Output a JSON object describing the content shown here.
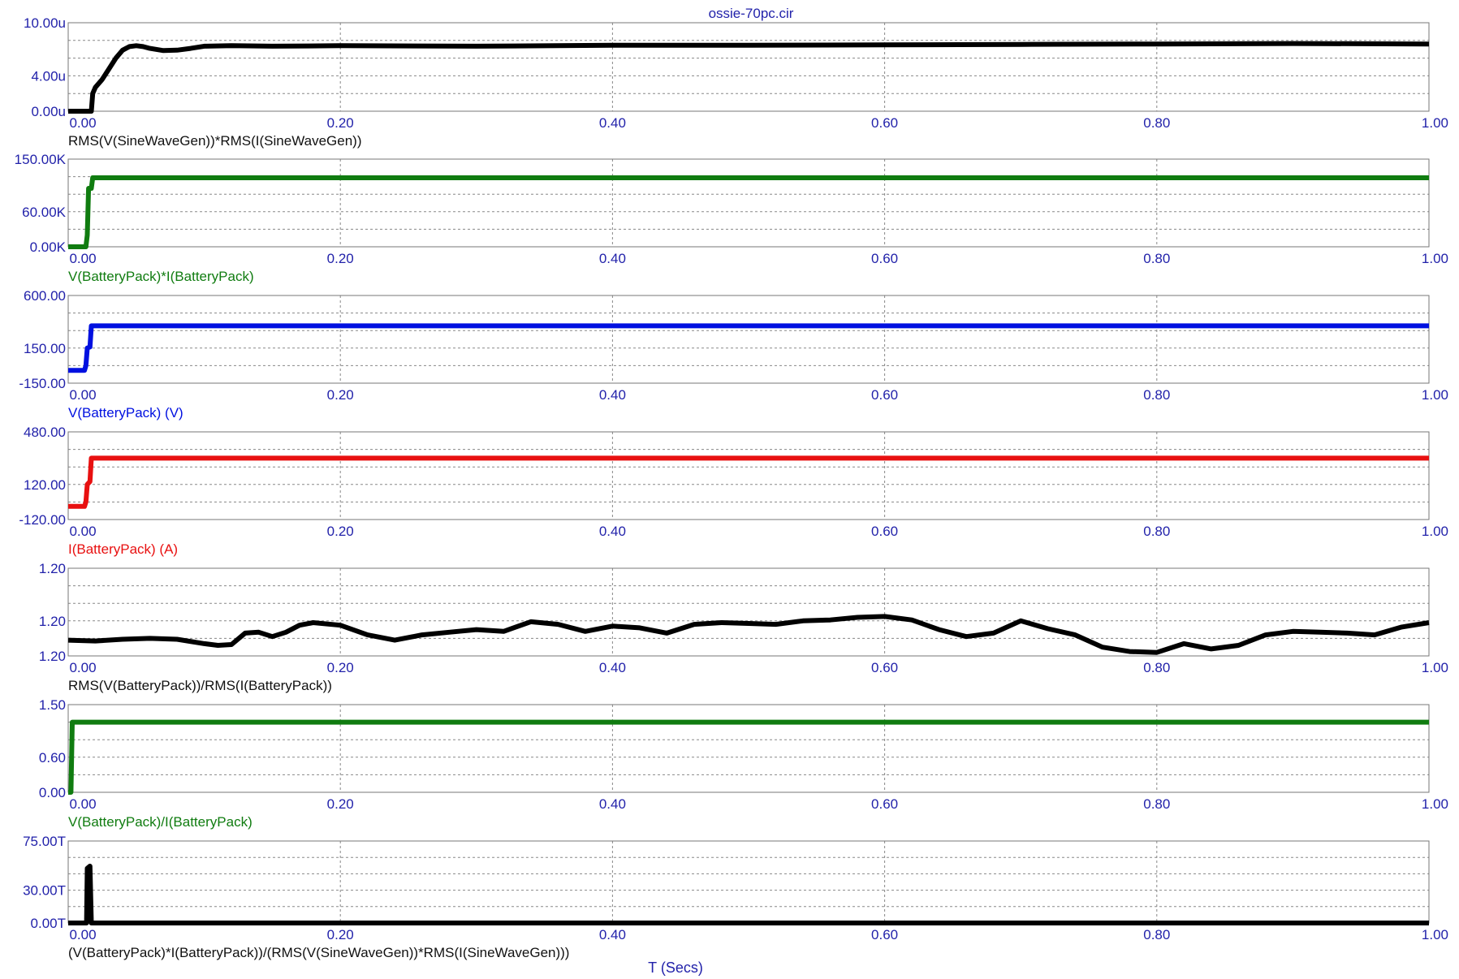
{
  "title": "ossie-70pc.cir",
  "xaxis_title": "T (Secs)",
  "chart_data": [
    {
      "type": "line",
      "series": [
        {
          "name": "RMS(V(SineWaveGen))*RMS(I(SineWaveGen))",
          "color": "#000000"
        }
      ],
      "yticks": [
        "10.00u",
        "4.00u",
        "0.00u"
      ],
      "ylim": [
        0,
        10
      ],
      "xticks": [
        "0.00",
        "0.20",
        "0.40",
        "0.60",
        "0.80",
        "1.00"
      ],
      "xlim": [
        0,
        1
      ],
      "grid": true,
      "points": [
        [
          0,
          0
        ],
        [
          0.017,
          0
        ],
        [
          0.018,
          2
        ],
        [
          0.02,
          2.7
        ],
        [
          0.025,
          3.6
        ],
        [
          0.03,
          4.8
        ],
        [
          0.035,
          6
        ],
        [
          0.04,
          6.9
        ],
        [
          0.045,
          7.3
        ],
        [
          0.05,
          7.4
        ],
        [
          0.055,
          7.3
        ],
        [
          0.06,
          7.1
        ],
        [
          0.07,
          6.85
        ],
        [
          0.08,
          6.9
        ],
        [
          0.09,
          7.1
        ],
        [
          0.1,
          7.35
        ],
        [
          0.12,
          7.4
        ],
        [
          0.15,
          7.35
        ],
        [
          0.2,
          7.4
        ],
        [
          0.3,
          7.35
        ],
        [
          0.4,
          7.45
        ],
        [
          0.5,
          7.45
        ],
        [
          0.6,
          7.5
        ],
        [
          0.7,
          7.55
        ],
        [
          0.8,
          7.6
        ],
        [
          0.9,
          7.65
        ],
        [
          1.0,
          7.6
        ]
      ]
    },
    {
      "type": "line",
      "series": [
        {
          "name": "V(BatteryPack)*I(BatteryPack)",
          "color": "#107c10"
        }
      ],
      "yticks": [
        "150.00K",
        "60.00K",
        "0.00K"
      ],
      "ylim": [
        0,
        150
      ],
      "xticks": [
        "0.00",
        "0.20",
        "0.40",
        "0.60",
        "0.80",
        "1.00"
      ],
      "xlim": [
        0,
        1
      ],
      "grid": true,
      "points": [
        [
          0,
          0
        ],
        [
          0.013,
          0
        ],
        [
          0.014,
          20
        ],
        [
          0.015,
          100
        ],
        [
          0.017,
          100
        ],
        [
          0.018,
          118
        ],
        [
          1.0,
          118
        ]
      ]
    },
    {
      "type": "line",
      "series": [
        {
          "name": "V(BatteryPack) (V)",
          "color": "#0010e0"
        }
      ],
      "yticks": [
        "600.00",
        "150.00",
        "-150.00"
      ],
      "ylim": [
        -150,
        600
      ],
      "xticks": [
        "0.00",
        "0.20",
        "0.40",
        "0.60",
        "0.80",
        "1.00"
      ],
      "xlim": [
        0,
        1
      ],
      "grid": true,
      "points": [
        [
          0,
          -40
        ],
        [
          0.012,
          -40
        ],
        [
          0.013,
          0
        ],
        [
          0.014,
          150
        ],
        [
          0.016,
          160
        ],
        [
          0.017,
          340
        ],
        [
          1.0,
          340
        ]
      ]
    },
    {
      "type": "line",
      "series": [
        {
          "name": "I(BatteryPack) (A)",
          "color": "#e81010"
        }
      ],
      "yticks": [
        "480.00",
        "120.00",
        "-120.00"
      ],
      "ylim": [
        -120,
        480
      ],
      "xticks": [
        "0.00",
        "0.20",
        "0.40",
        "0.60",
        "0.80",
        "1.00"
      ],
      "xlim": [
        0,
        1
      ],
      "grid": true,
      "points": [
        [
          0,
          -30
        ],
        [
          0.012,
          -30
        ],
        [
          0.013,
          0
        ],
        [
          0.014,
          120
        ],
        [
          0.016,
          140
        ],
        [
          0.017,
          300
        ],
        [
          1.0,
          300
        ]
      ]
    },
    {
      "type": "line",
      "series": [
        {
          "name": "RMS(V(BatteryPack))/RMS(I(BatteryPack))",
          "color": "#000000"
        }
      ],
      "yticks": [
        "1.20",
        "1.20",
        "1.20"
      ],
      "ylim": [
        0,
        1
      ],
      "xticks": [
        "0.00",
        "0.20",
        "0.40",
        "0.60",
        "0.80",
        "1.00"
      ],
      "xlim": [
        0,
        1
      ],
      "grid": true,
      "points": [
        [
          0,
          0.18
        ],
        [
          0.02,
          0.17
        ],
        [
          0.04,
          0.19
        ],
        [
          0.06,
          0.2
        ],
        [
          0.08,
          0.19
        ],
        [
          0.1,
          0.14
        ],
        [
          0.11,
          0.12
        ],
        [
          0.12,
          0.13
        ],
        [
          0.13,
          0.26
        ],
        [
          0.14,
          0.27
        ],
        [
          0.15,
          0.22
        ],
        [
          0.16,
          0.27
        ],
        [
          0.17,
          0.35
        ],
        [
          0.18,
          0.38
        ],
        [
          0.2,
          0.35
        ],
        [
          0.22,
          0.24
        ],
        [
          0.24,
          0.18
        ],
        [
          0.26,
          0.24
        ],
        [
          0.28,
          0.27
        ],
        [
          0.3,
          0.3
        ],
        [
          0.32,
          0.28
        ],
        [
          0.34,
          0.39
        ],
        [
          0.36,
          0.36
        ],
        [
          0.38,
          0.28
        ],
        [
          0.4,
          0.34
        ],
        [
          0.42,
          0.32
        ],
        [
          0.44,
          0.26
        ],
        [
          0.46,
          0.36
        ],
        [
          0.48,
          0.38
        ],
        [
          0.5,
          0.37
        ],
        [
          0.52,
          0.36
        ],
        [
          0.54,
          0.4
        ],
        [
          0.56,
          0.41
        ],
        [
          0.58,
          0.44
        ],
        [
          0.6,
          0.45
        ],
        [
          0.62,
          0.41
        ],
        [
          0.64,
          0.3
        ],
        [
          0.66,
          0.22
        ],
        [
          0.68,
          0.26
        ],
        [
          0.7,
          0.4
        ],
        [
          0.72,
          0.31
        ],
        [
          0.74,
          0.24
        ],
        [
          0.76,
          0.1
        ],
        [
          0.78,
          0.05
        ],
        [
          0.8,
          0.04
        ],
        [
          0.82,
          0.14
        ],
        [
          0.84,
          0.08
        ],
        [
          0.86,
          0.12
        ],
        [
          0.88,
          0.24
        ],
        [
          0.9,
          0.28
        ],
        [
          0.92,
          0.27
        ],
        [
          0.94,
          0.26
        ],
        [
          0.96,
          0.24
        ],
        [
          0.98,
          0.33
        ],
        [
          1.0,
          0.38
        ]
      ]
    },
    {
      "type": "line",
      "series": [
        {
          "name": "V(BatteryPack)/I(BatteryPack)",
          "color": "#107c10"
        }
      ],
      "yticks": [
        "1.50",
        "0.60",
        "0.00"
      ],
      "ylim": [
        0,
        1.5
      ],
      "xticks": [
        "0.00",
        "0.20",
        "0.40",
        "0.60",
        "0.80",
        "1.00"
      ],
      "xlim": [
        0,
        1
      ],
      "grid": true,
      "points": [
        [
          0,
          0
        ],
        [
          0.002,
          0
        ],
        [
          0.003,
          1.2
        ],
        [
          1.0,
          1.2
        ]
      ]
    },
    {
      "type": "line",
      "series": [
        {
          "name": "(V(BatteryPack)*I(BatteryPack))/(RMS(V(SineWaveGen))*RMS(I(SineWaveGen)))",
          "color": "#000000"
        }
      ],
      "yticks": [
        "75.00T",
        "30.00T",
        "0.00T"
      ],
      "ylim": [
        0,
        75
      ],
      "xticks": [
        "0.00",
        "0.20",
        "0.40",
        "0.60",
        "0.80",
        "1.00"
      ],
      "xlim": [
        0,
        1
      ],
      "grid": true,
      "points": [
        [
          0,
          0
        ],
        [
          0.0135,
          0
        ],
        [
          0.014,
          50
        ],
        [
          0.016,
          52
        ],
        [
          0.017,
          0
        ],
        [
          1.0,
          0
        ]
      ]
    }
  ]
}
